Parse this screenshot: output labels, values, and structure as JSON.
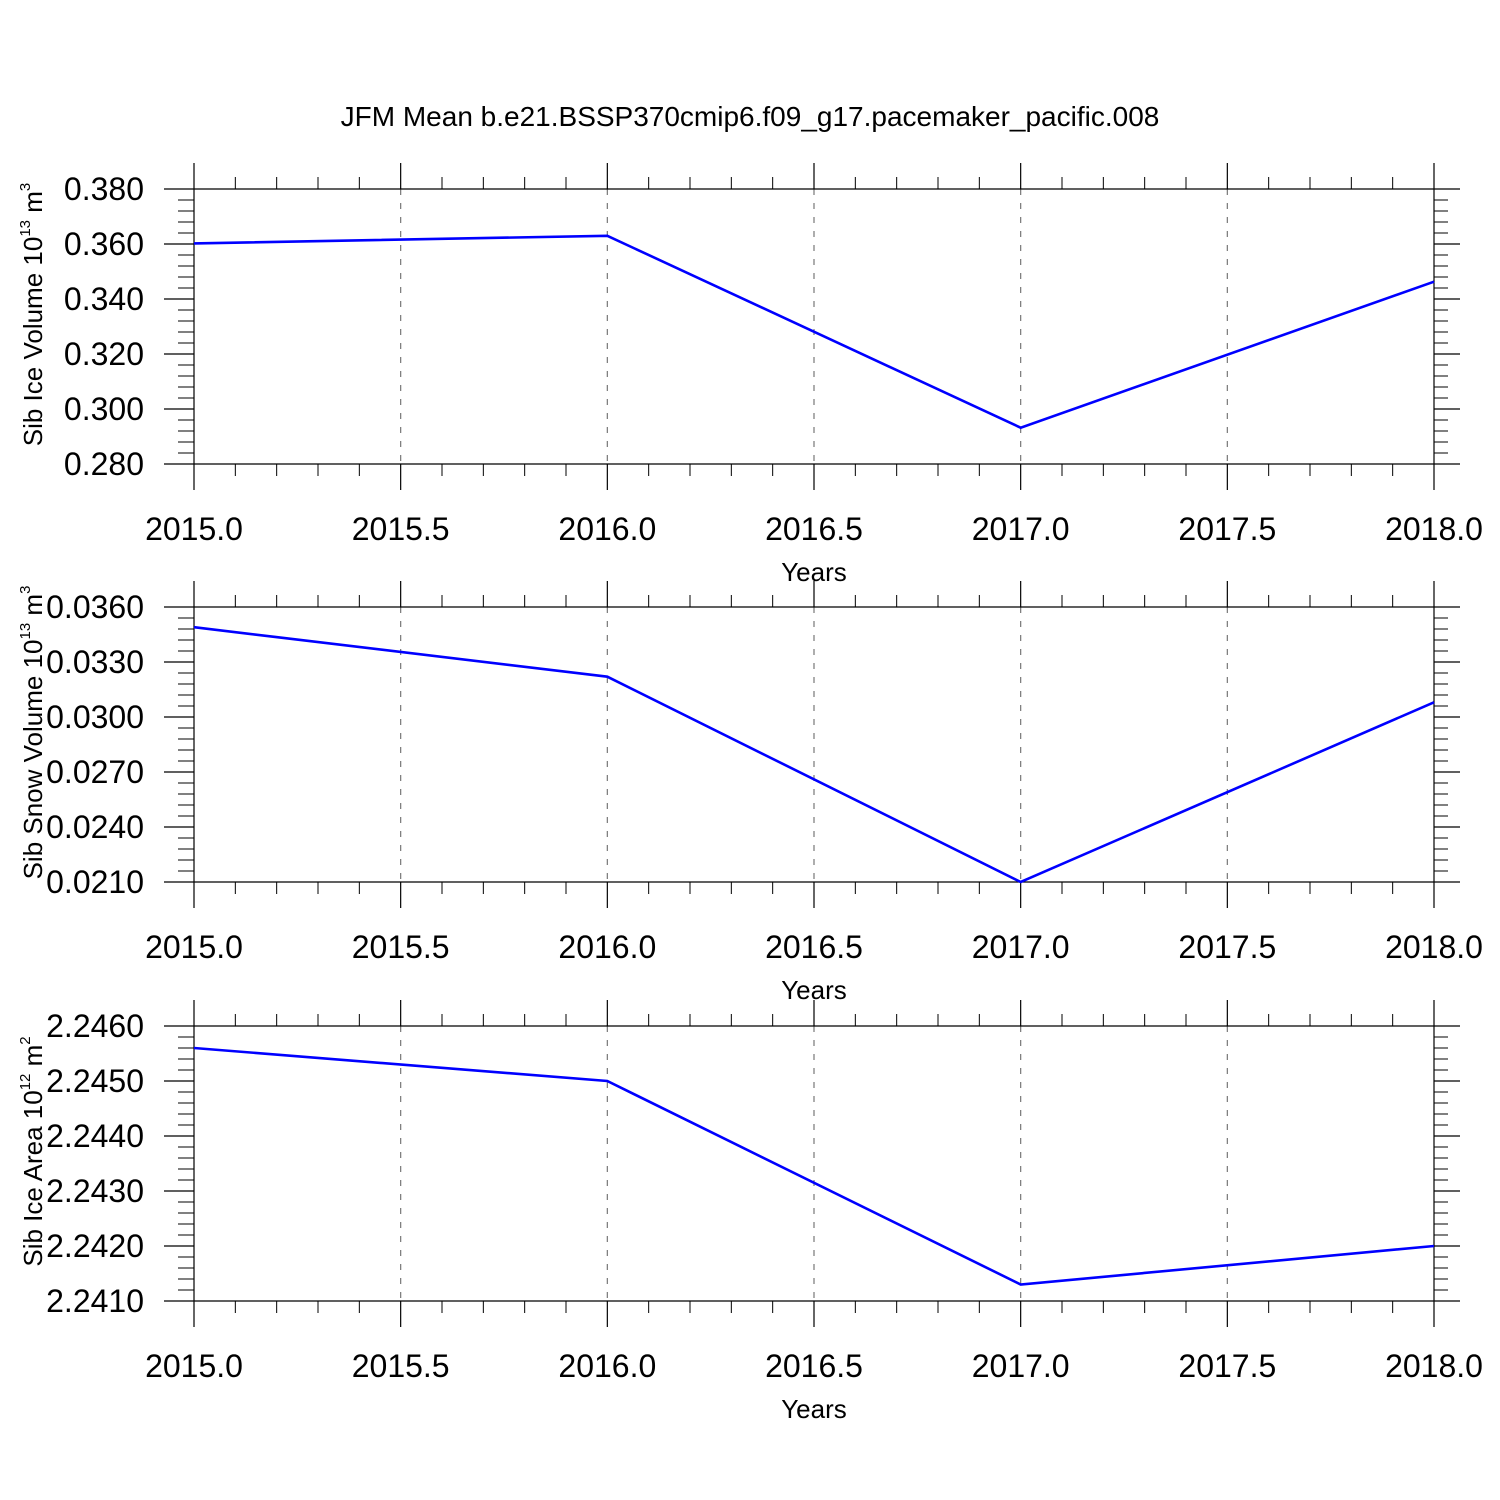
{
  "title": "JFM Mean b.e21.BSSP370cmip6.f09_g17.pacemaker_pacific.008",
  "line_color": "#0000ff",
  "chart_data": [
    {
      "type": "line",
      "ylabel": {
        "text": "Sib Ice Volume 10",
        "sup": "13",
        "unit": " m",
        "unit_sup": "3"
      },
      "xlabel": "Years",
      "x": [
        2015,
        2016,
        2017,
        2018
      ],
      "series": [
        {
          "values": [
            0.3602,
            0.363,
            0.2932,
            0.3463
          ]
        }
      ],
      "xlim": [
        2015.0,
        2018.0
      ],
      "ylim": [
        0.28,
        0.38
      ],
      "x_ticks": [
        2015.0,
        2015.5,
        2016.0,
        2016.5,
        2017.0,
        2017.5,
        2018.0
      ],
      "x_tick_labels": [
        "2015.0",
        "2015.5",
        "2016.0",
        "2016.5",
        "2017.0",
        "2017.5",
        "2018.0"
      ],
      "y_ticks": [
        0.28,
        0.3,
        0.32,
        0.34,
        0.36,
        0.38
      ],
      "y_tick_labels": [
        "0.280",
        "0.300",
        "0.320",
        "0.340",
        "0.360",
        "0.380"
      ],
      "grid": "dashed vertical"
    },
    {
      "type": "line",
      "ylabel": {
        "text": "Sib Snow Volume 10",
        "sup": "13",
        "unit": " m",
        "unit_sup": "3"
      },
      "xlabel": "Years",
      "x": [
        2015,
        2016,
        2017,
        2018
      ],
      "series": [
        {
          "values": [
            0.0349,
            0.0322,
            0.021,
            0.0308
          ]
        }
      ],
      "xlim": [
        2015.0,
        2018.0
      ],
      "ylim": [
        0.021,
        0.036
      ],
      "x_ticks": [
        2015.0,
        2015.5,
        2016.0,
        2016.5,
        2017.0,
        2017.5,
        2018.0
      ],
      "x_tick_labels": [
        "2015.0",
        "2015.5",
        "2016.0",
        "2016.5",
        "2017.0",
        "2017.5",
        "2018.0"
      ],
      "y_ticks": [
        0.021,
        0.024,
        0.027,
        0.03,
        0.033,
        0.036
      ],
      "y_tick_labels": [
        "0.0210",
        "0.0240",
        "0.0270",
        "0.0300",
        "0.0330",
        "0.0360"
      ],
      "grid": "dashed vertical"
    },
    {
      "type": "line",
      "ylabel": {
        "text": "Sib Ice Area 10",
        "sup": "12",
        "unit": " m",
        "unit_sup": "2"
      },
      "xlabel": "Years",
      "x": [
        2015,
        2016,
        2017,
        2018
      ],
      "series": [
        {
          "values": [
            2.2456,
            2.245,
            2.2413,
            2.242
          ]
        }
      ],
      "xlim": [
        2015.0,
        2018.0
      ],
      "ylim": [
        2.241,
        2.246
      ],
      "x_ticks": [
        2015.0,
        2015.5,
        2016.0,
        2016.5,
        2017.0,
        2017.5,
        2018.0
      ],
      "x_tick_labels": [
        "2015.0",
        "2015.5",
        "2016.0",
        "2016.5",
        "2017.0",
        "2017.5",
        "2018.0"
      ],
      "y_ticks": [
        2.241,
        2.242,
        2.243,
        2.244,
        2.245,
        2.246
      ],
      "y_tick_labels": [
        "2.2410",
        "2.2420",
        "2.2430",
        "2.2440",
        "2.2450",
        "2.2460"
      ],
      "grid": "dashed vertical"
    }
  ]
}
